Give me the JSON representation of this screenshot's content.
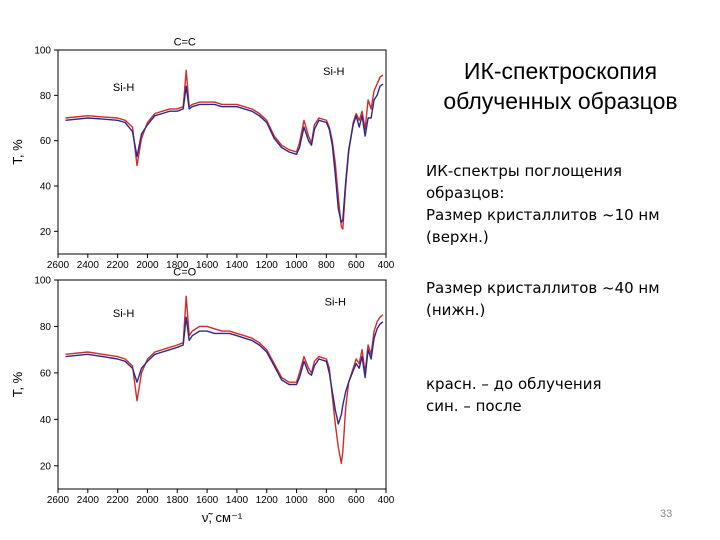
{
  "slide": {
    "title_line1": "ИК-спектроскопия",
    "title_line2": "облученных образцов",
    "desc_block1": [
      "ИК-спектры поглощения",
      "образцов:",
      "Размер кристаллитов ~10 нм",
      "(верхн.)"
    ],
    "desc_block2": [
      "Размер кристаллитов ~40 нм",
      "(нижн.)"
    ],
    "desc_block3": [
      "красн. – до облучения",
      "син. – после"
    ],
    "page_number": "33"
  },
  "colors": {
    "before": "#d42a2a",
    "after": "#2a2a8c",
    "axis": "#000000"
  },
  "chart_data": [
    {
      "type": "line",
      "ylabel": "T, %",
      "xlabel": "",
      "xlim": [
        2600,
        400
      ],
      "ylim": [
        10,
        100
      ],
      "xticks": [
        2600,
        2400,
        2200,
        2000,
        1800,
        1600,
        1400,
        1200,
        1000,
        800,
        600,
        400
      ],
      "yticks": [
        20,
        40,
        60,
        80,
        100
      ],
      "annotations": [
        {
          "text": "C=C",
          "x": 1750,
          "y": 102
        },
        {
          "text": "Si-H",
          "x": 2160,
          "y": 82
        },
        {
          "text": "Si-H",
          "x": 750,
          "y": 89
        }
      ],
      "series": [
        {
          "color_key": "before",
          "x": [
            2550,
            2400,
            2300,
            2200,
            2150,
            2100,
            2070,
            2040,
            2000,
            1950,
            1900,
            1850,
            1800,
            1760,
            1740,
            1720,
            1700,
            1650,
            1600,
            1550,
            1500,
            1450,
            1400,
            1350,
            1300,
            1250,
            1200,
            1150,
            1100,
            1050,
            1000,
            980,
            950,
            920,
            900,
            880,
            850,
            800,
            780,
            760,
            740,
            720,
            700,
            690,
            670,
            650,
            620,
            600,
            580,
            560,
            540,
            520,
            500,
            480,
            460,
            440,
            420
          ],
          "y": [
            70,
            71,
            70.5,
            70,
            69,
            66,
            49,
            61,
            68,
            72,
            73,
            74,
            74,
            75,
            91,
            75,
            76,
            77,
            77,
            77,
            76,
            76,
            76,
            75,
            74,
            72,
            69,
            62,
            58,
            56,
            55,
            59,
            69,
            62,
            59,
            67,
            70,
            69,
            66,
            60,
            50,
            35,
            22,
            21,
            40,
            55,
            68,
            72,
            69,
            73,
            65,
            78,
            74,
            82,
            85,
            88,
            89
          ]
        },
        {
          "color_key": "after",
          "x": [
            2550,
            2400,
            2300,
            2200,
            2150,
            2100,
            2070,
            2040,
            2000,
            1950,
            1900,
            1850,
            1800,
            1760,
            1740,
            1720,
            1700,
            1650,
            1600,
            1550,
            1500,
            1450,
            1400,
            1350,
            1300,
            1250,
            1200,
            1150,
            1100,
            1050,
            1000,
            980,
            950,
            920,
            900,
            880,
            850,
            800,
            780,
            760,
            740,
            720,
            700,
            690,
            670,
            650,
            620,
            600,
            580,
            560,
            540,
            520,
            500,
            480,
            460,
            440,
            420
          ],
          "y": [
            69,
            70,
            69.5,
            69,
            68,
            64,
            53,
            63,
            67,
            71,
            72,
            73,
            73,
            74,
            84,
            74,
            75,
            76,
            76,
            76,
            75,
            75,
            75,
            74,
            73,
            71,
            68,
            61,
            57,
            55,
            54,
            57,
            66,
            60,
            58,
            65,
            69,
            68,
            65,
            58,
            45,
            30,
            24,
            25,
            42,
            56,
            67,
            71,
            66,
            71,
            62,
            70,
            70,
            78,
            80,
            84,
            85
          ]
        }
      ]
    },
    {
      "type": "line",
      "ylabel": "T, %",
      "xlabel": "ν̃, см⁻¹",
      "xlim": [
        2600,
        400
      ],
      "ylim": [
        10,
        100
      ],
      "xticks": [
        2600,
        2400,
        2200,
        2000,
        1800,
        1600,
        1400,
        1200,
        1000,
        800,
        600,
        400
      ],
      "yticks": [
        20,
        40,
        60,
        80,
        100
      ],
      "annotations": [
        {
          "text": "C=O",
          "x": 1750,
          "y": 102
        },
        {
          "text": "Si-H",
          "x": 2160,
          "y": 84
        },
        {
          "text": "Si-H",
          "x": 740,
          "y": 89
        }
      ],
      "series": [
        {
          "color_key": "before",
          "x": [
            2550,
            2400,
            2300,
            2200,
            2150,
            2100,
            2070,
            2040,
            2000,
            1950,
            1900,
            1850,
            1800,
            1760,
            1740,
            1720,
            1700,
            1650,
            1600,
            1550,
            1500,
            1450,
            1400,
            1350,
            1300,
            1250,
            1200,
            1150,
            1100,
            1050,
            1000,
            980,
            950,
            920,
            900,
            880,
            850,
            800,
            780,
            760,
            740,
            720,
            700,
            690,
            670,
            650,
            620,
            600,
            580,
            560,
            540,
            520,
            500,
            480,
            460,
            440,
            420
          ],
          "y": [
            68,
            69,
            68,
            67,
            66,
            63,
            48,
            60,
            66,
            69,
            70,
            71,
            72,
            73,
            93,
            76,
            78,
            80,
            80,
            79,
            78,
            78,
            77,
            76,
            75,
            73,
            70,
            64,
            58,
            56,
            56,
            60,
            67,
            62,
            60,
            65,
            67,
            66,
            62,
            50,
            38,
            28,
            21,
            26,
            45,
            56,
            62,
            66,
            64,
            70,
            60,
            72,
            68,
            78,
            82,
            84,
            85
          ]
        },
        {
          "color_key": "after",
          "x": [
            2550,
            2400,
            2300,
            2200,
            2150,
            2100,
            2070,
            2040,
            2000,
            1950,
            1900,
            1850,
            1800,
            1760,
            1740,
            1720,
            1700,
            1650,
            1600,
            1550,
            1500,
            1450,
            1400,
            1350,
            1300,
            1250,
            1200,
            1150,
            1100,
            1050,
            1000,
            980,
            950,
            920,
            900,
            880,
            850,
            800,
            780,
            760,
            740,
            720,
            700,
            690,
            670,
            650,
            620,
            600,
            580,
            560,
            540,
            520,
            500,
            480,
            460,
            440,
            420
          ],
          "y": [
            67,
            68,
            67,
            66,
            65,
            62,
            56,
            62,
            65,
            68,
            69,
            70,
            71,
            72,
            84,
            74,
            76,
            78,
            78,
            77,
            77,
            77,
            76,
            75,
            74,
            72,
            69,
            63,
            57,
            55,
            55,
            58,
            65,
            60,
            59,
            63,
            66,
            65,
            60,
            52,
            44,
            38,
            42,
            46,
            52,
            56,
            61,
            64,
            62,
            67,
            58,
            70,
            66,
            75,
            79,
            81,
            82
          ]
        }
      ]
    }
  ]
}
